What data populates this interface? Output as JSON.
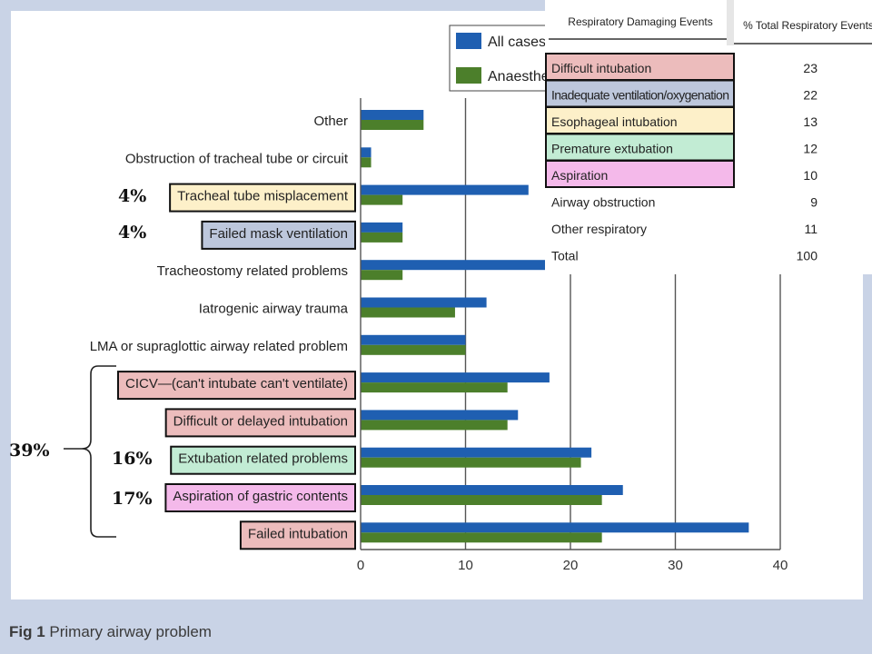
{
  "caption": {
    "fig": "Fig 1",
    "text": "Primary airway problem"
  },
  "legend": [
    "All cases",
    "Anaesthe"
  ],
  "colors": {
    "all": "#1f5fb1",
    "anaes": "#4c7f2b",
    "bg": "#c9d3e6",
    "pink": "#ecbcbc",
    "blue": "#bdc7dc",
    "yellow": "#fdf0c9",
    "green": "#c2ecd4",
    "magenta": "#f4b9ea"
  },
  "chart_data": {
    "type": "bar",
    "orientation": "horizontal",
    "title": "",
    "xlim": [
      0,
      40
    ],
    "xticks": [
      0,
      10,
      20,
      30,
      40
    ],
    "categories": [
      "Other",
      "Obstruction of tracheal tube or circuit",
      "Tracheal tube misplacement",
      "Failed mask ventilation",
      "Tracheostomy related problems",
      "Iatrogenic airway trauma",
      "LMA or supraglottic airway related problem",
      "CICV—(can't intubate can't ventilate)",
      "Difficult or delayed intubation",
      "Extubation related problems",
      "Aspiration of gastric contents",
      "Failed intubation"
    ],
    "series": [
      {
        "name": "All cases",
        "values": [
          6,
          1,
          16,
          4,
          18,
          12,
          10,
          18,
          15,
          22,
          25,
          37
        ]
      },
      {
        "name": "Anaesthe",
        "values": [
          6,
          1,
          4,
          4,
          4,
          9,
          10,
          14,
          14,
          21,
          23,
          23
        ]
      }
    ],
    "highlights": [
      null,
      null,
      "yellow",
      "blue",
      null,
      null,
      null,
      "pink",
      "pink",
      "green",
      "magenta",
      "pink"
    ]
  },
  "annotations": {
    "pct_tube": "4%",
    "pct_mask": "4%",
    "pct_group": "39%",
    "pct_extub": "16%",
    "pct_aspir": "17%"
  },
  "table": {
    "header_left": "Respiratory Damaging Events",
    "header_right": "% Total Respiratory Events",
    "rows": [
      {
        "label": "Difficult intubation",
        "value": "23",
        "hl": "pink"
      },
      {
        "label": "Inadequate ventilation/oxygenation",
        "value": "22",
        "hl": "blue"
      },
      {
        "label": "Esophageal intubation",
        "value": "13",
        "hl": "yellow"
      },
      {
        "label": "Premature extubation",
        "value": "12",
        "hl": "green"
      },
      {
        "label": "Aspiration",
        "value": "10",
        "hl": "magenta"
      },
      {
        "label": "Airway obstruction",
        "value": "9",
        "hl": null
      },
      {
        "label": "Other respiratory",
        "value": "11",
        "hl": null
      },
      {
        "label": "Total",
        "value": "100",
        "hl": null
      }
    ]
  }
}
